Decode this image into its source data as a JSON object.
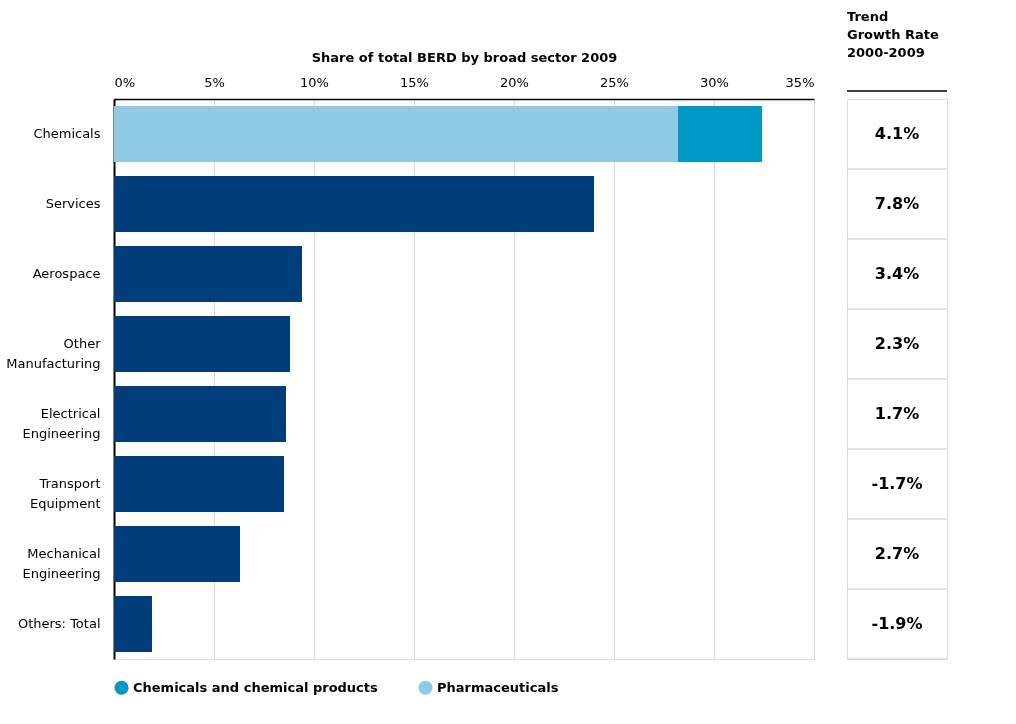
{
  "chart_data": [
    {
      "type": "bar",
      "orientation": "horizontal",
      "stacked": true,
      "title": "Share of total BERD by broad sector 2009",
      "categories": [
        "Chemicals",
        "Services",
        "Aerospace",
        "Other Manufacturing",
        "Electrical Engineering",
        "Transport Equipment",
        "Mechanical Engineering",
        "Others: Total"
      ],
      "series": [
        {
          "name": "Pharmaceuticals",
          "color": "#8ecae3",
          "values": [
            28.2,
            null,
            null,
            null,
            null,
            null,
            null,
            null
          ]
        },
        {
          "name": "Chemicals and chemical products",
          "color": "#0099c6",
          "values": [
            4.2,
            null,
            null,
            null,
            null,
            null,
            null,
            null
          ]
        },
        {
          "color": "#003d7a",
          "values": [
            null,
            24.0,
            9.4,
            8.8,
            8.6,
            8.5,
            6.3,
            1.9
          ]
        }
      ],
      "xlim": [
        0,
        35
      ],
      "xticks": [
        {
          "value": 0,
          "label": "0%"
        },
        {
          "value": 5,
          "label": "5%"
        },
        {
          "value": 10,
          "label": "10%"
        },
        {
          "value": 15,
          "label": "15%"
        },
        {
          "value": 20,
          "label": "20%"
        },
        {
          "value": 25,
          "label": "25%"
        },
        {
          "value": 30,
          "label": "30%"
        },
        {
          "value": 35,
          "label": "35%"
        }
      ],
      "grid": "x",
      "legend": "bottom left"
    },
    {
      "type": "other",
      "title": "Trend Growth Rate 2000-2009",
      "annotations": [
        "4.1%",
        "7.8%",
        "3.4%",
        "2.3%",
        "1.7%",
        "-1.7%",
        "2.7%",
        "-1.9%"
      ]
    }
  ]
}
